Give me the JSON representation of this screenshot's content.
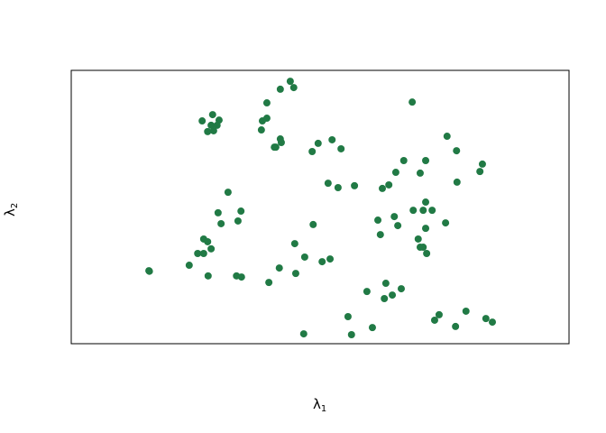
{
  "chart_data": {
    "type": "scatter",
    "title": "",
    "xlabel": "λ",
    "xlabel_subscript": "1",
    "ylabel": "λ",
    "ylabel_subscript": "2",
    "xlim": [
      0,
      100
    ],
    "ylim": [
      0,
      100
    ],
    "axes_ticks": false,
    "grid": false,
    "point_color": "#217a45",
    "points": [
      [
        44.0,
        96.0
      ],
      [
        42.0,
        93.1
      ],
      [
        44.7,
        93.7
      ],
      [
        39.3,
        88.1
      ],
      [
        28.4,
        83.8
      ],
      [
        26.3,
        81.5
      ],
      [
        29.7,
        81.8
      ],
      [
        28.1,
        79.9
      ],
      [
        29.3,
        79.9
      ],
      [
        27.4,
        77.6
      ],
      [
        28.6,
        77.9
      ],
      [
        38.4,
        81.5
      ],
      [
        39.3,
        82.5
      ],
      [
        38.2,
        78.2
      ],
      [
        42.0,
        74.9
      ],
      [
        42.2,
        73.6
      ],
      [
        41.1,
        71.9
      ],
      [
        40.8,
        71.9
      ],
      [
        49.6,
        73.3
      ],
      [
        48.4,
        70.3
      ],
      [
        31.5,
        55.4
      ],
      [
        29.5,
        47.9
      ],
      [
        34.1,
        48.5
      ],
      [
        30.1,
        43.9
      ],
      [
        33.5,
        44.9
      ],
      [
        48.6,
        43.6
      ],
      [
        26.6,
        38.3
      ],
      [
        27.4,
        37.3
      ],
      [
        28.1,
        34.7
      ],
      [
        25.4,
        33.0
      ],
      [
        26.6,
        33.0
      ],
      [
        44.9,
        36.6
      ],
      [
        46.9,
        31.7
      ],
      [
        50.4,
        30.0
      ],
      [
        23.7,
        28.7
      ],
      [
        15.6,
        26.7
      ],
      [
        15.7,
        26.5
      ],
      [
        27.5,
        24.8
      ],
      [
        33.2,
        24.8
      ],
      [
        34.2,
        24.4
      ],
      [
        41.8,
        27.7
      ],
      [
        45.1,
        25.7
      ],
      [
        39.7,
        22.4
      ],
      [
        46.7,
        3.6
      ],
      [
        68.5,
        88.4
      ],
      [
        52.4,
        74.6
      ],
      [
        54.2,
        71.3
      ],
      [
        75.5,
        75.9
      ],
      [
        77.4,
        70.6
      ],
      [
        66.8,
        67.0
      ],
      [
        71.2,
        67.0
      ],
      [
        65.2,
        62.7
      ],
      [
        70.1,
        62.4
      ],
      [
        82.6,
        65.7
      ],
      [
        82.1,
        63.0
      ],
      [
        77.5,
        59.1
      ],
      [
        51.6,
        58.7
      ],
      [
        53.6,
        57.1
      ],
      [
        56.9,
        57.8
      ],
      [
        62.5,
        56.8
      ],
      [
        63.8,
        58.1
      ],
      [
        71.2,
        51.8
      ],
      [
        68.7,
        48.8
      ],
      [
        70.7,
        48.8
      ],
      [
        72.5,
        48.8
      ],
      [
        64.9,
        46.5
      ],
      [
        61.6,
        45.2
      ],
      [
        65.6,
        43.2
      ],
      [
        75.2,
        44.2
      ],
      [
        71.2,
        42.2
      ],
      [
        62.1,
        39.9
      ],
      [
        69.7,
        38.3
      ],
      [
        70.1,
        35.3
      ],
      [
        70.7,
        35.3
      ],
      [
        71.4,
        33.0
      ],
      [
        52.0,
        31.0
      ],
      [
        63.2,
        22.1
      ],
      [
        59.4,
        19.1
      ],
      [
        66.3,
        20.1
      ],
      [
        62.9,
        16.5
      ],
      [
        64.5,
        17.8
      ],
      [
        55.6,
        9.9
      ],
      [
        60.5,
        5.9
      ],
      [
        56.3,
        3.3
      ],
      [
        73.0,
        8.6
      ],
      [
        73.9,
        10.6
      ],
      [
        79.3,
        11.9
      ],
      [
        77.2,
        6.3
      ],
      [
        83.3,
        9.2
      ],
      [
        84.6,
        7.9
      ]
    ]
  }
}
